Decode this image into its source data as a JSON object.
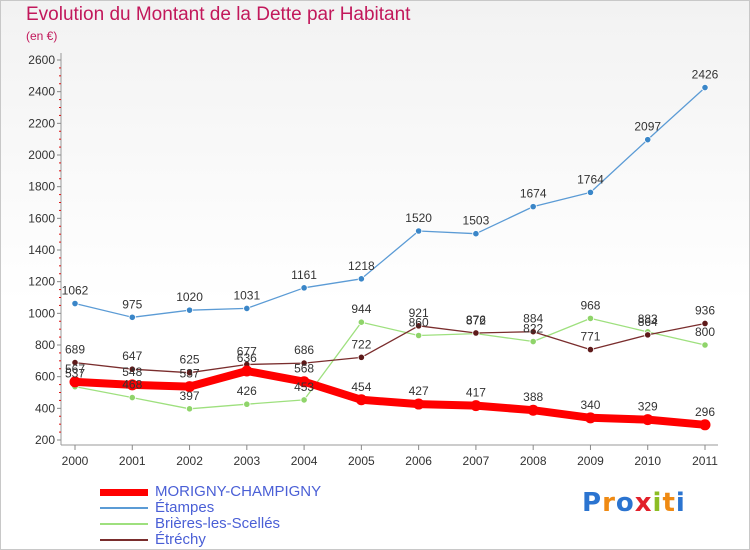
{
  "header": {
    "title": "Evolution du Montant de la Dette par Habitant",
    "subtitle": "(en €)"
  },
  "logo": {
    "text": "Proxiti",
    "colors": [
      "#2b74d0",
      "#ef8a13",
      "#2b74d0",
      "#e2202a",
      "#8cbd24",
      "#ef8a13",
      "#2b74d0"
    ]
  },
  "chart_data": {
    "type": "line",
    "x": [
      "2000",
      "2001",
      "2002",
      "2003",
      "2004",
      "2005",
      "2006",
      "2007",
      "2008",
      "2009",
      "2010",
      "2011"
    ],
    "ylim": [
      200,
      2600
    ],
    "yticks": [
      200,
      400,
      600,
      800,
      1000,
      1200,
      1400,
      1600,
      1800,
      2000,
      2200,
      2400,
      2600
    ],
    "grid": false,
    "legend_position": "bottom-left",
    "series": [
      {
        "name": "Étampes",
        "color": "#5b9bd5",
        "marker": "#3a86c8",
        "width": 1.3,
        "values": [
          1062,
          975,
          1020,
          1031,
          1161,
          1218,
          1520,
          1503,
          1674,
          1764,
          2097,
          2426
        ],
        "labels": [
          "1062",
          "975",
          "1020",
          "1031",
          "1161",
          "1218",
          "1520",
          "1503",
          "1674",
          "1764",
          "2097",
          "2426"
        ]
      },
      {
        "name": "Brières-les-Scellés",
        "color": "#9ee07e",
        "marker": "#8fd46a",
        "width": 1.3,
        "values": [
          537,
          468,
          397,
          426,
          453,
          944,
          860,
          872,
          822,
          968,
          883,
          800
        ],
        "labels": [
          "537",
          "468",
          "397",
          "426",
          "453",
          "944",
          "860",
          "872",
          "822",
          "968",
          "883",
          "800"
        ]
      },
      {
        "name": "Étréchy",
        "color": "#7a2d2d",
        "marker": "#5e1a1a",
        "width": 1.3,
        "values": [
          689,
          647,
          625,
          677,
          686,
          722,
          921,
          876,
          884,
          771,
          864,
          936
        ],
        "labels": [
          "689",
          "647",
          "625",
          "677",
          "686",
          "722",
          "921",
          "876",
          "884",
          "771",
          "864",
          "936"
        ]
      },
      {
        "name": "MORIGNY-CHAMPIGNY",
        "color": "#ff0000",
        "marker": "#ff0000",
        "width": 8,
        "values": [
          567,
          548,
          537,
          636,
          568,
          454,
          427,
          417,
          388,
          340,
          329,
          296
        ],
        "labels": [
          "567",
          "548",
          "537",
          "636",
          "568",
          "454",
          "427",
          "417",
          "388",
          "340",
          "329",
          "296"
        ]
      }
    ],
    "legend": [
      {
        "name": "MORIGNY-CHAMPIGNY",
        "color": "#ff0000"
      },
      {
        "name": "Étampes",
        "color": "#5b9bd5"
      },
      {
        "name": "Brières-les-Scellés",
        "color": "#9ee07e"
      },
      {
        "name": "Étréchy",
        "color": "#7a2d2d"
      }
    ]
  }
}
